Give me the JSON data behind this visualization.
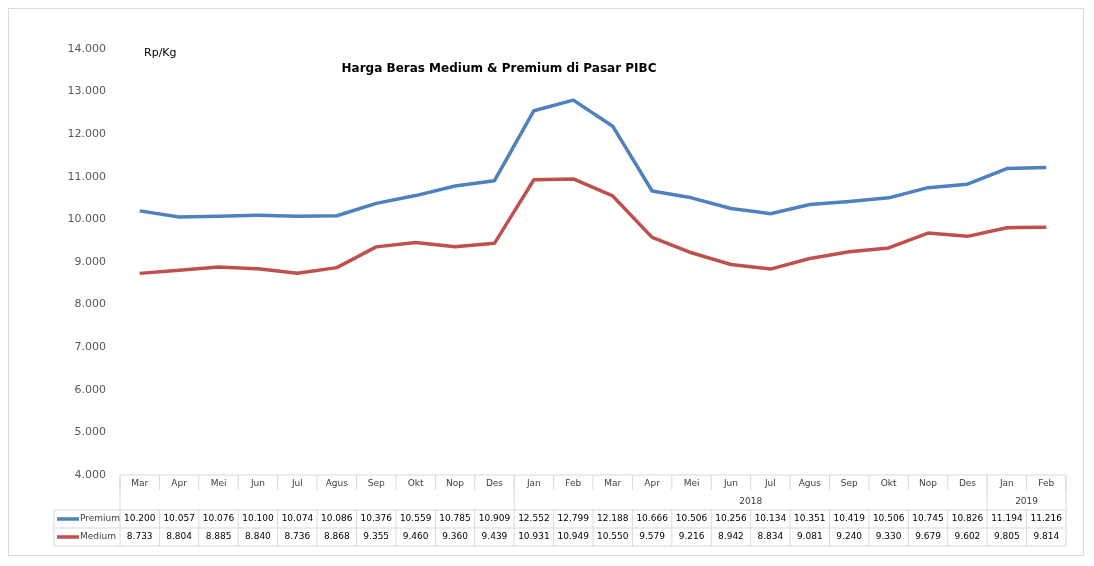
{
  "chart_data": {
    "type": "line",
    "title": "Harga Beras Medium & Premium di Pasar PIBC",
    "ylabel": "Rp/Kg",
    "categories": [
      "Mar",
      "Apr",
      "Mei",
      "Jun",
      "Jul",
      "Agus",
      "Sep",
      "Okt",
      "Nop",
      "Des",
      "Jan",
      "Feb",
      "Mar",
      "Apr",
      "Mei",
      "Jun",
      "Jul",
      "Agus",
      "Sep",
      "Okt",
      "Nop",
      "Des",
      "Jan",
      "Feb"
    ],
    "series": [
      {
        "name": "Premium",
        "color": "#4f81bd",
        "values": [
          10200,
          10057,
          10076,
          10100,
          10074,
          10086,
          10376,
          10559,
          10785,
          10909,
          12552,
          12799,
          12188,
          10666,
          10506,
          10256,
          10134,
          10351,
          10419,
          10506,
          10745,
          10826,
          11194,
          11216
        ],
        "value_labels": [
          "10.200",
          "10.057",
          "10.076",
          "10.100",
          "10.074",
          "10.086",
          "10.376",
          "10.559",
          "10.785",
          "10.909",
          "12.552",
          "12.799",
          "12.188",
          "10.666",
          "10.506",
          "10.256",
          "10.134",
          "10.351",
          "10.419",
          "10.506",
          "10.745",
          "10.826",
          "11.194",
          "11.216"
        ]
      },
      {
        "name": "Medium",
        "color": "#c0504d",
        "values": [
          8733,
          8804,
          8885,
          8840,
          8736,
          8868,
          9355,
          9460,
          9360,
          9439,
          10931,
          10949,
          10550,
          9579,
          9216,
          8942,
          8834,
          9081,
          9240,
          9330,
          9679,
          9602,
          9805,
          9814
        ],
        "value_labels": [
          "8.733",
          "8.804",
          "8.885",
          "8.840",
          "8.736",
          "8.868",
          "9.355",
          "9.460",
          "9.360",
          "9.439",
          "10.931",
          "10.949",
          "10.550",
          "9.579",
          "9.216",
          "8.942",
          "8.834",
          "9.081",
          "9.240",
          "9.330",
          "9.679",
          "9.602",
          "9.805",
          "9.814"
        ]
      }
    ],
    "ylim": [
      4000,
      14000
    ],
    "yticks": [
      {
        "value": 4000,
        "label": "4.000"
      },
      {
        "value": 5000,
        "label": "5.000"
      },
      {
        "value": 6000,
        "label": "6.000"
      },
      {
        "value": 7000,
        "label": "7.000"
      },
      {
        "value": 8000,
        "label": "8.000"
      },
      {
        "value": 9000,
        "label": "9.000"
      },
      {
        "value": 10000,
        "label": "10.000"
      },
      {
        "value": 11000,
        "label": "11.000"
      },
      {
        "value": 12000,
        "label": "12.000"
      },
      {
        "value": 13000,
        "label": "13.000"
      },
      {
        "value": 14000,
        "label": "14.000"
      }
    ],
    "annotations": [
      "2018",
      "2019"
    ],
    "grid": false,
    "legend": "bottom",
    "marker": "none",
    "line_style": "solid"
  }
}
